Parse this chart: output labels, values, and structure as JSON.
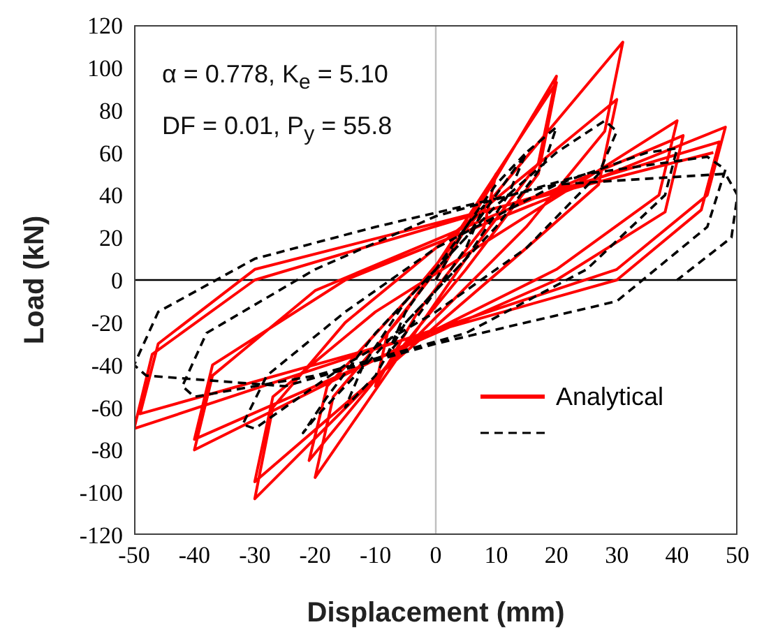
{
  "chart_data": {
    "type": "line",
    "xlabel": "Displacement (mm)",
    "ylabel": "Load (kN)",
    "annotations": [
      "α = 0.778, K$_{e}$ = 5.10",
      "DF = 0.01, P$_{y}$ = 55.8"
    ],
    "xlim": [
      -50,
      50
    ],
    "xticks": [
      -50,
      -40,
      -30,
      -20,
      -10,
      0,
      10,
      20,
      30,
      40,
      50
    ],
    "ylim": [
      -120,
      120
    ],
    "yticks": [
      -120,
      -100,
      -80,
      -60,
      -40,
      -20,
      0,
      20,
      40,
      60,
      80,
      100,
      120
    ],
    "legend": "bottom right",
    "marker": "none",
    "ref_lines": [
      {
        "axis": "y",
        "value": 0,
        "color": "#000000"
      },
      {
        "axis": "x",
        "value": 0,
        "color": "#bfbfbf"
      }
    ],
    "series": [
      {
        "name": "Analytical",
        "color": "#ff0000",
        "line_style": "solid",
        "x": [
          0,
          10,
          8,
          -3,
          -10,
          -8,
          3,
          20,
          17,
          5,
          -20,
          -17,
          -5,
          20,
          17,
          5,
          -21,
          -18,
          -5,
          31,
          28,
          15,
          -30,
          -27,
          -15,
          30,
          27,
          15,
          -30,
          -27,
          -10,
          40,
          37,
          20,
          -40,
          -37,
          -20,
          41,
          38,
          20,
          -40,
          -37,
          -15,
          48,
          45,
          30,
          -50,
          -47,
          -30,
          47,
          44,
          30,
          -49,
          -46,
          -30,
          46
        ],
        "values": [
          0,
          50,
          25,
          -15,
          -50,
          -25,
          15,
          96,
          55,
          10,
          -93,
          -55,
          -15,
          93,
          50,
          5,
          -85,
          -50,
          -10,
          112,
          70,
          25,
          -103,
          -60,
          -20,
          85,
          45,
          15,
          -95,
          -55,
          -15,
          75,
          40,
          5,
          -80,
          -45,
          -5,
          68,
          32,
          0,
          -75,
          -40,
          0,
          72,
          40,
          5,
          -70,
          -35,
          0,
          65,
          33,
          0,
          -63,
          -30,
          5,
          60
        ]
      },
      {
        "color": "#000000",
        "line_style": "dashed",
        "x": [
          0,
          5,
          8,
          5,
          0,
          -5,
          -8,
          -5,
          0,
          10,
          15,
          12,
          5,
          -5,
          -10,
          -15,
          -12,
          -5,
          5,
          15,
          20,
          18,
          10,
          0,
          -10,
          -20,
          -22,
          -18,
          -10,
          0,
          10,
          20,
          28,
          30,
          27,
          15,
          0,
          -15,
          -30,
          -32,
          -28,
          -15,
          0,
          20,
          35,
          40,
          38,
          25,
          5,
          -20,
          -40,
          -42,
          -38,
          -20,
          0,
          25,
          45,
          48,
          45,
          30,
          0,
          -25,
          -48,
          -50,
          -46,
          -30,
          -10,
          20,
          48,
          50,
          49,
          40
        ],
        "values": [
          0,
          25,
          35,
          15,
          -5,
          -25,
          -35,
          -15,
          5,
          45,
          60,
          40,
          10,
          -20,
          -45,
          -60,
          -40,
          -10,
          20,
          60,
          72,
          55,
          25,
          -5,
          -35,
          -65,
          -72,
          -55,
          -25,
          5,
          35,
          60,
          75,
          70,
          50,
          15,
          -15,
          -40,
          -70,
          -68,
          -45,
          -15,
          15,
          45,
          60,
          62,
          40,
          5,
          -25,
          -45,
          -55,
          -50,
          -25,
          5,
          30,
          50,
          58,
          52,
          25,
          -10,
          -30,
          -50,
          -45,
          -40,
          -15,
          10,
          25,
          45,
          50,
          40,
          20,
          0
        ]
      }
    ]
  }
}
